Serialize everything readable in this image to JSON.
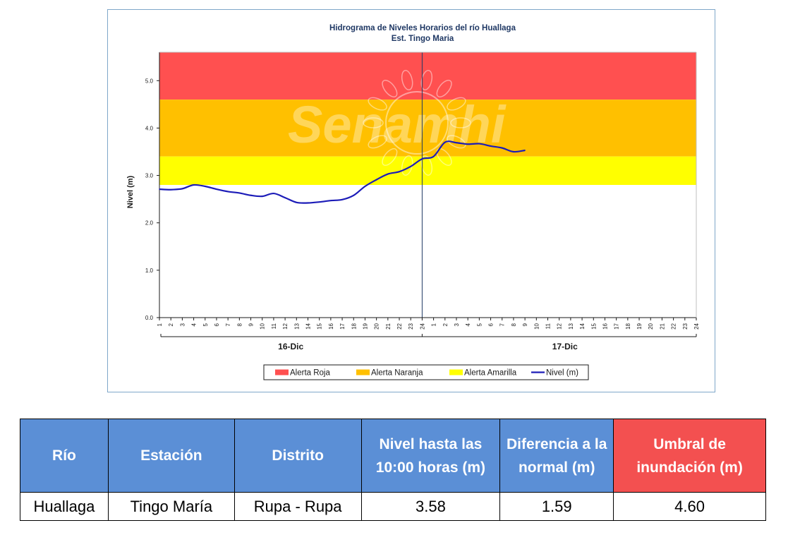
{
  "chart_data": {
    "type": "line",
    "title": "Hidrograma de Niveles Horarios del río Huallaga",
    "subtitle": "Est. Tingo Maria",
    "watermark": "Senamhi",
    "ylabel": "Nivel (m)",
    "ylim": [
      0,
      5.6
    ],
    "yticks": [
      "0.0",
      "1.0",
      "2.0",
      "3.0",
      "4.0",
      "5.0"
    ],
    "days": [
      {
        "label": "16-Dic",
        "hours": [
          "1",
          "2",
          "3",
          "4",
          "5",
          "6",
          "7",
          "8",
          "9",
          "10",
          "11",
          "12",
          "13",
          "14",
          "15",
          "16",
          "17",
          "18",
          "19",
          "20",
          "21",
          "22",
          "23",
          "24"
        ]
      },
      {
        "label": "17-Dic",
        "hours": [
          "1",
          "2",
          "3",
          "4",
          "5",
          "6",
          "7",
          "8",
          "9",
          "10",
          "11",
          "12",
          "13",
          "14",
          "15",
          "16",
          "17",
          "18",
          "19",
          "20",
          "21",
          "22",
          "23",
          "24"
        ]
      }
    ],
    "bands": [
      {
        "name": "Alerta Roja",
        "from": 4.6,
        "to": 5.6,
        "color": "#ff5050"
      },
      {
        "name": "Alerta Naranja",
        "from": 3.4,
        "to": 4.6,
        "color": "#ffc000"
      },
      {
        "name": "Alerta Amarilla",
        "from": 2.8,
        "to": 3.4,
        "color": "#ffff00"
      }
    ],
    "series": [
      {
        "name": "Nivel (m)",
        "color": "#1c1cb8",
        "values": [
          2.71,
          2.7,
          2.72,
          2.8,
          2.77,
          2.71,
          2.66,
          2.63,
          2.58,
          2.56,
          2.62,
          2.53,
          2.43,
          2.42,
          2.44,
          2.47,
          2.49,
          2.58,
          2.77,
          2.91,
          3.03,
          3.08,
          3.19,
          3.35,
          3.4,
          3.7,
          3.69,
          3.66,
          3.67,
          3.62,
          3.58,
          3.5,
          3.53
        ]
      }
    ],
    "grid": false,
    "legend_position": "bottom",
    "legend": [
      {
        "label": "Alerta Roja",
        "kind": "box",
        "color": "#ff5050"
      },
      {
        "label": "Alerta Naranja",
        "kind": "box",
        "color": "#ffc000"
      },
      {
        "label": "Alerta Amarilla",
        "kind": "box",
        "color": "#ffff00"
      },
      {
        "label": "Nivel (m)",
        "kind": "line",
        "color": "#1c1cb8"
      }
    ]
  },
  "table": {
    "headers": {
      "rio": "Río",
      "estacion": "Estación",
      "distrito": "Distrito",
      "nivel": "Nivel hasta las 10:00 horas (m)",
      "diferencia": "Diferencia a la normal (m)",
      "umbral": "Umbral de inundación (m)"
    },
    "row": {
      "rio": "Huallaga",
      "estacion": "Tingo María",
      "distrito": "Rupa - Rupa",
      "nivel": "3.58",
      "diferencia": "1.59",
      "umbral": "4.60"
    },
    "colors": {
      "header": "#5b8fd6",
      "threshold_header": "#f35050"
    }
  }
}
